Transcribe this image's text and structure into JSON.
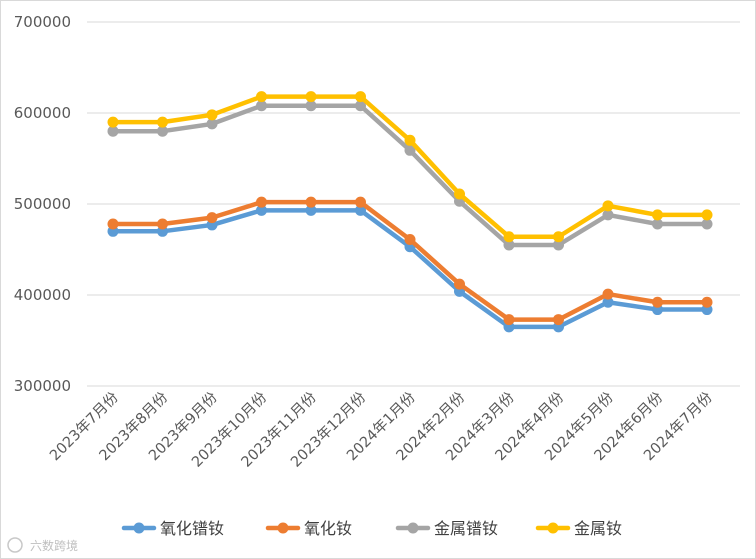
{
  "watermark": "六数跨境",
  "chart_data": {
    "type": "line",
    "title": "",
    "xlabel": "",
    "ylabel": "",
    "categories": [
      "2023年7月份",
      "2023年8月份",
      "2023年9月份",
      "2023年10月份",
      "2023年11月份",
      "2023年12月份",
      "2024年1月份",
      "2024年2月份",
      "2024年3月份",
      "2024年4月份",
      "2024年5月份",
      "2024年6月份",
      "2024年7月份"
    ],
    "ylim": [
      300000,
      700000
    ],
    "yticks": [
      "300000",
      "400000",
      "500000",
      "600000",
      "700000"
    ],
    "grid": true,
    "legend_position": "bottom",
    "series": [
      {
        "name": "氧化镨钕",
        "color": "#5b9bd5",
        "values": [
          470000,
          470000,
          477000,
          493000,
          493000,
          493000,
          453000,
          404000,
          365000,
          365000,
          392000,
          384000,
          384000
        ]
      },
      {
        "name": "氧化钕",
        "color": "#ed7d31",
        "values": [
          478000,
          478000,
          485000,
          502000,
          502000,
          502000,
          461000,
          412000,
          373000,
          373000,
          401000,
          392000,
          392000
        ]
      },
      {
        "name": "金属镨钕",
        "color": "#a5a5a5",
        "values": [
          580000,
          580000,
          588000,
          608000,
          608000,
          608000,
          559000,
          503000,
          455000,
          455000,
          488000,
          478000,
          478000
        ]
      },
      {
        "name": "金属钕",
        "color": "#ffc000",
        "values": [
          590000,
          590000,
          598000,
          618000,
          618000,
          618000,
          570000,
          511000,
          464000,
          464000,
          498000,
          488000,
          488000
        ]
      }
    ]
  }
}
